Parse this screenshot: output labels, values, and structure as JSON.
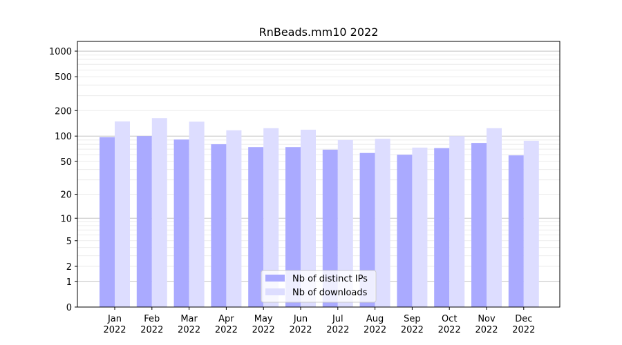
{
  "chart_data": {
    "type": "bar",
    "title": "RnBeads.mm10 2022",
    "xlabel": "",
    "ylabel": "",
    "y_scale": "symlog (log of 1+value)",
    "ylim": [
      0,
      1300
    ],
    "yticks": [
      0,
      1,
      2,
      5,
      10,
      20,
      50,
      100,
      200,
      500,
      1000
    ],
    "grid": true,
    "legend_position": "bottom-center",
    "categories": [
      "Jan\n2022",
      "Feb\n2022",
      "Mar\n2022",
      "Apr\n2022",
      "May\n2022",
      "Jun\n2022",
      "Jul\n2022",
      "Aug\n2022",
      "Sep\n2022",
      "Oct\n2022",
      "Nov\n2022",
      "Dec\n2022"
    ],
    "series": [
      {
        "name": "Nb of distinct IPs",
        "color": "#aaaaff",
        "values": [
          97,
          100,
          91,
          80,
          74,
          74,
          69,
          63,
          60,
          72,
          83,
          59
        ]
      },
      {
        "name": "Nb of downloads",
        "color": "#ddddff",
        "values": [
          149,
          163,
          148,
          117,
          124,
          119,
          90,
          93,
          73,
          100,
          124,
          88
        ]
      }
    ]
  }
}
